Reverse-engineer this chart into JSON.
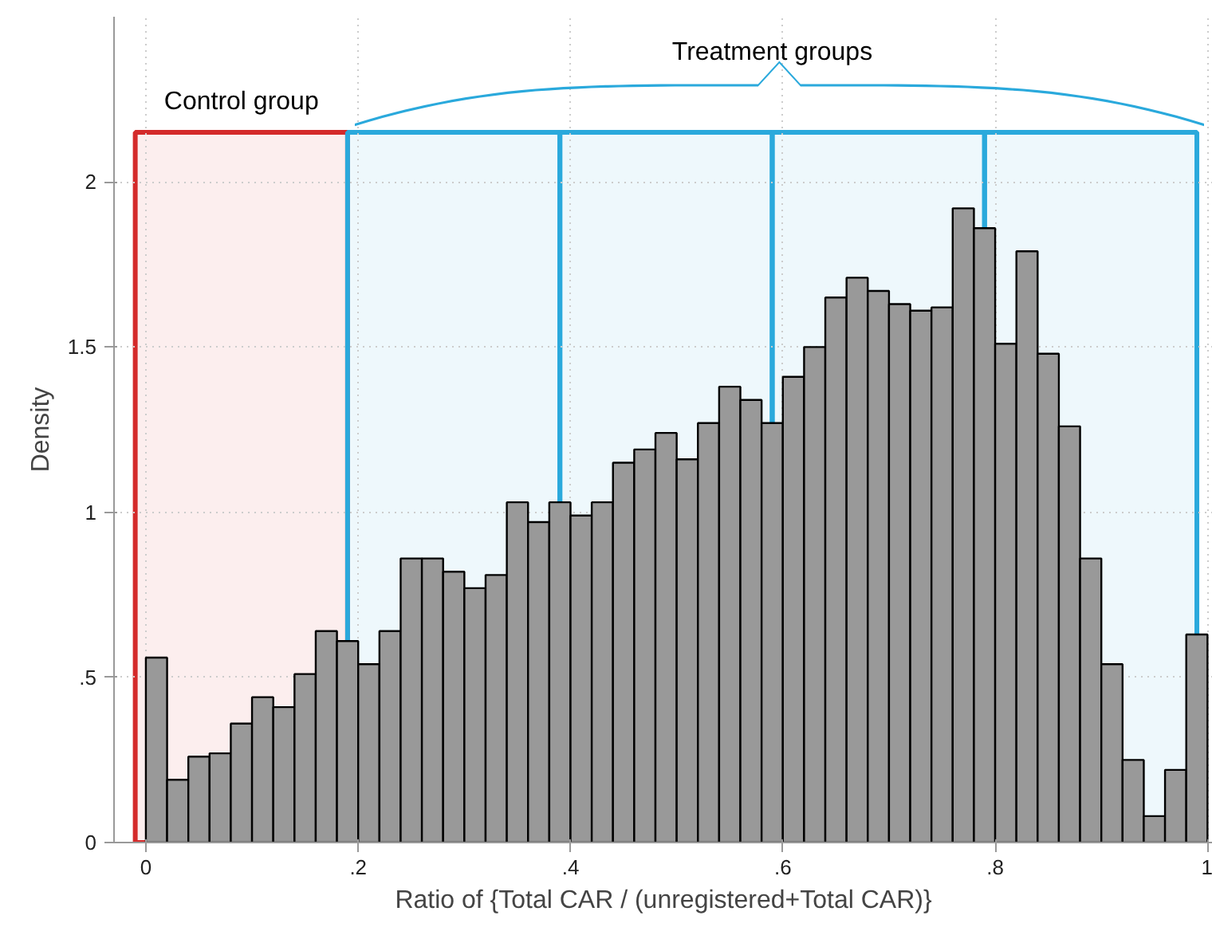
{
  "chart_data": {
    "type": "histogram",
    "xlabel": "Ratio of {Total CAR / (unregistered+Total CAR)}",
    "ylabel": "Density",
    "bins": [
      0,
      0.02,
      0.04,
      0.06,
      0.08,
      0.1,
      0.12,
      0.14,
      0.16,
      0.18,
      0.2,
      0.22,
      0.24,
      0.26,
      0.28,
      0.3,
      0.32,
      0.34,
      0.36,
      0.38,
      0.4,
      0.42,
      0.44,
      0.46,
      0.48,
      0.5,
      0.52,
      0.54,
      0.56,
      0.58,
      0.6,
      0.62,
      0.64,
      0.66,
      0.68,
      0.7,
      0.72,
      0.74,
      0.76,
      0.78,
      0.8,
      0.82,
      0.84,
      0.86,
      0.88,
      0.9,
      0.92,
      0.94,
      0.96,
      0.98,
      1.0
    ],
    "values": [
      0.56,
      0.19,
      0.26,
      0.27,
      0.36,
      0.44,
      0.41,
      0.51,
      0.64,
      0.61,
      0.54,
      0.64,
      0.86,
      0.86,
      0.82,
      0.77,
      0.81,
      1.03,
      0.97,
      1.03,
      0.99,
      1.03,
      1.15,
      1.19,
      1.24,
      1.16,
      1.27,
      1.38,
      1.34,
      1.27,
      1.41,
      1.5,
      1.65,
      1.71,
      1.67,
      1.63,
      1.61,
      1.62,
      1.92,
      1.86,
      1.51,
      1.79,
      1.48,
      1.26,
      0.86,
      0.54,
      0.25,
      0.08,
      0.22,
      0.63
    ],
    "color": "#999999",
    "xlim": [
      -0.03,
      1.005
    ],
    "ylim": [
      0,
      2.5
    ],
    "xticks": [
      {
        "value": 0,
        "label": "0"
      },
      {
        "value": 0.2,
        "label": ".2"
      },
      {
        "value": 0.4,
        "label": ".4"
      },
      {
        "value": 0.6,
        "label": ".6"
      },
      {
        "value": 0.8,
        "label": ".8"
      },
      {
        "value": 1,
        "label": "1"
      }
    ],
    "yticks": [
      0,
      {
        "value": 0.5,
        "label": ".5"
      },
      1,
      1.5,
      2
    ],
    "grid": true,
    "bands": [
      {
        "axis": "x",
        "from": -0.01,
        "to": 0.19,
        "label": "Control group",
        "color": "#d42a2a"
      },
      {
        "axis": "x",
        "from": 0.19,
        "to": 0.39,
        "label": null,
        "color": "#2aa9dc"
      },
      {
        "axis": "x",
        "from": 0.39,
        "to": 0.59,
        "label": null,
        "color": "#2aa9dc"
      },
      {
        "axis": "x",
        "from": 0.59,
        "to": 0.79,
        "label": null,
        "color": "#2aa9dc"
      },
      {
        "axis": "x",
        "from": 0.79,
        "to": 0.99,
        "label": null,
        "color": "#2aa9dc"
      }
    ],
    "annotations": [
      "Treatment groups"
    ]
  }
}
